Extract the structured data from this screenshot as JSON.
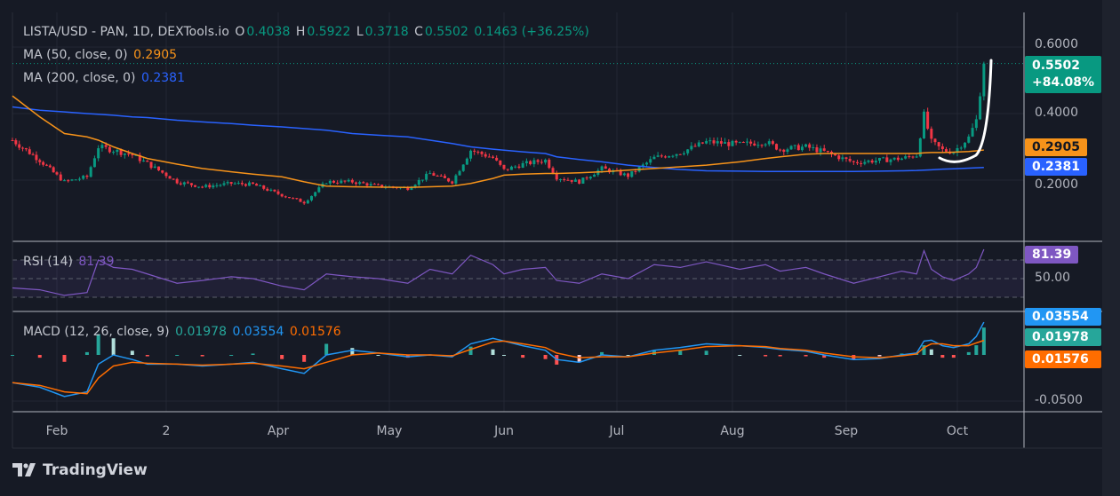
{
  "header": {
    "symbol": "LISTA/USD - PAN, 1D, DEXTools.io",
    "o_label": "O",
    "o": "0.4038",
    "h_label": "H",
    "h": "0.5922",
    "l_label": "L",
    "l": "0.3718",
    "c_label": "C",
    "c": "0.5502",
    "change": "0.1463 (+36.25%)"
  },
  "ma50": {
    "label": "MA (50, close, 0)",
    "value": "0.2905",
    "color": "#f7931a"
  },
  "ma200": {
    "label": "MA (200, close, 0)",
    "value": "0.2381",
    "color": "#2962ff"
  },
  "rsi": {
    "label": "RSI (14)",
    "value": "81.39",
    "color": "#7e57c2"
  },
  "macd": {
    "label": "MACD (12, 26, close, 9)",
    "hist": "0.01978",
    "macd": "0.03554",
    "signal": "0.01576"
  },
  "price_tag": {
    "value": "0.5502",
    "change": "+84.08%",
    "color": "#089981"
  },
  "price_axis": [
    "0.6000",
    "0.4000",
    "0.2000"
  ],
  "rsi_axis": "50.00",
  "macd_axis": "-0.0500",
  "time_axis": [
    "Feb",
    "2",
    "Apr",
    "May",
    "Jun",
    "Jul",
    "Aug",
    "Sep",
    "Oct"
  ],
  "brand": "TradingView",
  "chart_data": {
    "type": "candlestick",
    "dates": [
      "2024-01-19",
      "2024-01-27",
      "2024-02-03",
      "2024-02-09",
      "2024-02-12",
      "2024-02-16",
      "2024-02-21",
      "2024-02-25",
      "2024-03-04",
      "2024-03-11",
      "2024-03-19",
      "2024-03-25",
      "2024-04-02",
      "2024-04-08",
      "2024-04-14",
      "2024-04-21",
      "2024-04-28",
      "2024-05-06",
      "2024-05-12",
      "2024-05-18",
      "2024-05-23",
      "2024-05-29",
      "2024-06-01",
      "2024-06-06",
      "2024-06-12",
      "2024-06-15",
      "2024-06-21",
      "2024-06-27",
      "2024-07-04",
      "2024-07-11",
      "2024-07-18",
      "2024-07-25",
      "2024-08-03",
      "2024-08-10",
      "2024-08-14",
      "2024-08-21",
      "2024-08-26",
      "2024-09-03",
      "2024-09-10",
      "2024-09-16",
      "2024-09-20",
      "2024-09-22",
      "2024-09-24",
      "2024-09-27",
      "2024-09-30",
      "2024-10-04",
      "2024-10-06",
      "2024-10-08"
    ],
    "close": [
      0.32,
      0.26,
      0.195,
      0.21,
      0.3,
      0.29,
      0.275,
      0.25,
      0.195,
      0.18,
      0.19,
      0.187,
      0.155,
      0.133,
      0.195,
      0.195,
      0.182,
      0.176,
      0.22,
      0.195,
      0.29,
      0.267,
      0.23,
      0.248,
      0.26,
      0.208,
      0.195,
      0.235,
      0.213,
      0.267,
      0.283,
      0.315,
      0.307,
      0.315,
      0.293,
      0.3,
      0.285,
      0.253,
      0.26,
      0.265,
      0.275,
      0.395,
      0.315,
      0.29,
      0.285,
      0.328,
      0.38,
      0.5502
    ],
    "ma50": [
      0.453,
      0.39,
      0.34,
      0.33,
      0.32,
      0.3,
      0.28,
      0.265,
      0.248,
      0.235,
      0.225,
      0.218,
      0.21,
      0.195,
      0.182,
      0.18,
      0.179,
      0.178,
      0.18,
      0.182,
      0.19,
      0.205,
      0.215,
      0.218,
      0.22,
      0.22,
      0.222,
      0.225,
      0.23,
      0.235,
      0.24,
      0.245,
      0.255,
      0.265,
      0.27,
      0.278,
      0.28,
      0.28,
      0.28,
      0.28,
      0.28,
      0.282,
      0.283,
      0.283,
      0.284,
      0.286,
      0.288,
      0.2905
    ],
    "ma200": [
      0.42,
      0.41,
      0.405,
      0.4,
      0.398,
      0.395,
      0.39,
      0.388,
      0.38,
      0.375,
      0.37,
      0.365,
      0.36,
      0.355,
      0.35,
      0.34,
      0.335,
      0.33,
      0.32,
      0.31,
      0.3,
      0.293,
      0.29,
      0.285,
      0.28,
      0.27,
      0.262,
      0.255,
      0.245,
      0.238,
      0.232,
      0.228,
      0.227,
      0.226,
      0.226,
      0.226,
      0.226,
      0.226,
      0.227,
      0.228,
      0.229,
      0.23,
      0.231,
      0.233,
      0.234,
      0.236,
      0.237,
      0.2381
    ],
    "rsi": [
      40,
      38,
      32,
      35,
      70,
      62,
      60,
      55,
      45,
      48,
      52,
      50,
      42,
      38,
      55,
      52,
      50,
      45,
      60,
      55,
      75,
      65,
      55,
      60,
      62,
      48,
      45,
      55,
      50,
      65,
      62,
      68,
      60,
      65,
      58,
      62,
      55,
      45,
      52,
      58,
      55,
      80,
      60,
      52,
      48,
      55,
      62,
      81.39
    ],
    "rsi_levels": [
      70,
      50,
      30
    ],
    "macd_line": [
      -0.03,
      -0.035,
      -0.045,
      -0.04,
      -0.01,
      0.0,
      -0.005,
      -0.01,
      -0.01,
      -0.012,
      -0.01,
      -0.008,
      -0.015,
      -0.02,
      0.0,
      0.005,
      0.002,
      -0.002,
      0.0,
      -0.002,
      0.012,
      0.018,
      0.015,
      0.01,
      0.005,
      -0.005,
      -0.008,
      0.0,
      -0.002,
      0.005,
      0.008,
      0.012,
      0.01,
      0.008,
      0.006,
      0.004,
      0.0,
      -0.005,
      -0.004,
      0.0,
      0.002,
      0.015,
      0.016,
      0.01,
      0.008,
      0.012,
      0.02,
      0.03554
    ],
    "signal_line": [
      -0.03,
      -0.033,
      -0.04,
      -0.042,
      -0.025,
      -0.012,
      -0.008,
      -0.009,
      -0.01,
      -0.011,
      -0.01,
      -0.009,
      -0.012,
      -0.015,
      -0.008,
      0.0,
      0.002,
      0.0,
      0.0,
      -0.001,
      0.006,
      0.014,
      0.015,
      0.012,
      0.008,
      0.002,
      -0.003,
      -0.002,
      -0.002,
      0.002,
      0.005,
      0.009,
      0.01,
      0.009,
      0.007,
      0.005,
      0.002,
      -0.002,
      -0.003,
      -0.001,
      0.001,
      0.008,
      0.012,
      0.012,
      0.01,
      0.01,
      0.013,
      0.01576
    ],
    "up_color": "#089981",
    "down_color": "#f23645"
  }
}
